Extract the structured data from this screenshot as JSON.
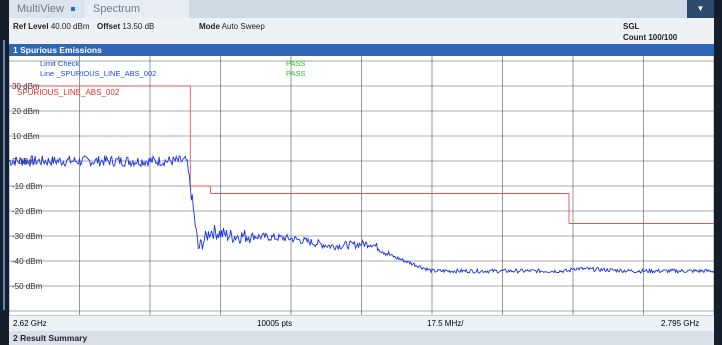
{
  "tabs": {
    "multiview": "MultiView",
    "spectrum": "Spectrum"
  },
  "info": {
    "ref_level_label": "Ref Level",
    "ref_level_value": "40.00 dBm",
    "offset_label": "Offset",
    "offset_value": "13.50 dB",
    "mode_label": "Mode",
    "mode_value": "Auto Sweep",
    "sgl": "SGL",
    "count": "Count 100/100"
  },
  "plot_title": "1 Spurious Emissions",
  "limit_check": {
    "label": "Limit Check",
    "status": "PASS",
    "line_label": "Line _SPURIOUS_LINE_ABS_002",
    "line_status": "PASS",
    "limit_line_name": "SPURIOUS_LINE_ABS_002"
  },
  "footer": {
    "start": "2.62 GHz",
    "points": "10005 pts",
    "step": "17.5 MHz/",
    "stop": "2.795 GHz"
  },
  "summary_title": "2 Result Summary",
  "colors": {
    "trace": "#1a33dd",
    "limit": "#e05555",
    "pass": "#22cc22",
    "header": "#2f66b3"
  },
  "chart_data": {
    "type": "line",
    "ylim": [
      -60,
      40
    ],
    "ytick_labels": [
      "30 dBm",
      "20 dBm",
      "10 dBm",
      "0 dBm",
      "-10 dBm",
      "-20 dBm",
      "-30 dBm",
      "-40 dBm",
      "-50 dBm"
    ],
    "xlim_mhz": [
      2620,
      2795
    ],
    "limit_line": [
      {
        "x": [
          2620,
          2665
        ],
        "y": 30
      },
      {
        "x": [
          2665,
          2670
        ],
        "y": -10
      },
      {
        "x": [
          2670,
          2759
        ],
        "y": -13
      },
      {
        "x": [
          2759,
          2795
        ],
        "y": -25
      }
    ],
    "trace": [
      {
        "x": 2620,
        "y": 0
      },
      {
        "x": 2630,
        "y": 0
      },
      {
        "x": 2640,
        "y": 0
      },
      {
        "x": 2650,
        "y": 0
      },
      {
        "x": 2660,
        "y": 0
      },
      {
        "x": 2664,
        "y": 0
      },
      {
        "x": 2665,
        "y": -10
      },
      {
        "x": 2667,
        "y": -35
      },
      {
        "x": 2670,
        "y": -28
      },
      {
        "x": 2675,
        "y": -30
      },
      {
        "x": 2680,
        "y": -30
      },
      {
        "x": 2690,
        "y": -31
      },
      {
        "x": 2700,
        "y": -34
      },
      {
        "x": 2710,
        "y": -33
      },
      {
        "x": 2715,
        "y": -38
      },
      {
        "x": 2725,
        "y": -44
      },
      {
        "x": 2740,
        "y": -44
      },
      {
        "x": 2759,
        "y": -44
      },
      {
        "x": 2760,
        "y": -43
      },
      {
        "x": 2775,
        "y": -44
      },
      {
        "x": 2795,
        "y": -44
      }
    ]
  }
}
